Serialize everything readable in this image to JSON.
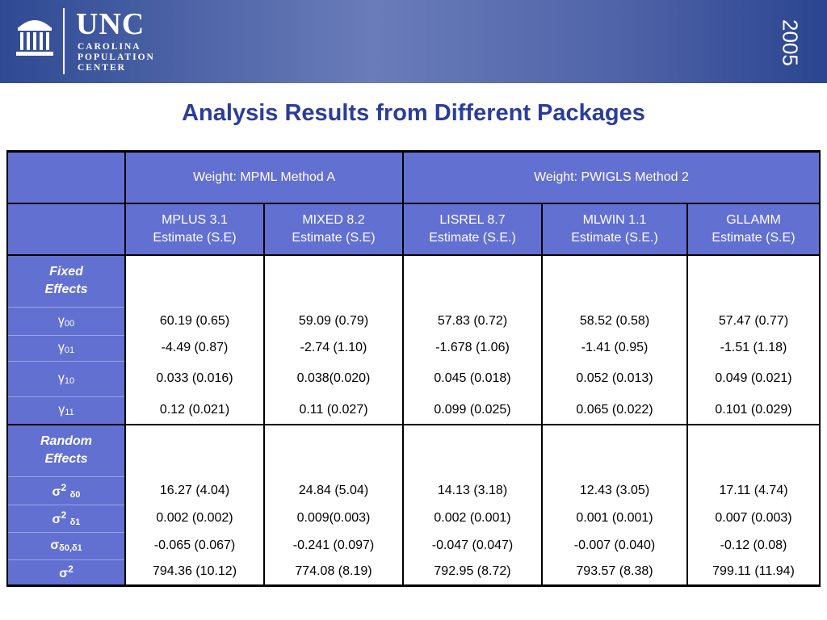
{
  "logo": {
    "icon": "old-well-icon",
    "name": "UNC",
    "line1": "CAROLINA",
    "line2": "POPULATION",
    "line3": "CENTER"
  },
  "year": "2005",
  "title": "Analysis Results from Different Packages",
  "table": {
    "weight_a": "Weight:  MPML Method A",
    "weight_b": "Weight:  PWIGLS Method 2",
    "columns": [
      {
        "name": "MPLUS 3.1",
        "sub": "Estimate (S.E)"
      },
      {
        "name": "MIXED 8.2",
        "sub": "Estimate (S.E)"
      },
      {
        "name": "LISREL 8.7",
        "sub": "Estimate (S.E.)"
      },
      {
        "name": "MLWIN 1.1",
        "sub": "Estimate (S.E.)"
      },
      {
        "name": "GLLAMM",
        "sub": "Estimate (S.E)"
      }
    ],
    "fixed_label_1": "Fixed",
    "fixed_label_2": "Effects",
    "random_label_1": "Random",
    "random_label_2": "Effects",
    "fixed_rows": [
      {
        "sym": "γ",
        "sub": "00",
        "values": [
          "60.19 (0.65)",
          "59.09 (0.79)",
          "57.83 (0.72)",
          "58.52 (0.58)",
          "57.47 (0.77)"
        ]
      },
      {
        "sym": "γ",
        "sub": "01",
        "values": [
          "-4.49 (0.87)",
          "-2.74 (1.10)",
          "-1.678 (1.06)",
          "-1.41 (0.95)",
          "-1.51 (1.18)"
        ]
      },
      {
        "sym": "γ",
        "sub": "10",
        "values": [
          "0.033 (0.016)",
          "0.038(0.020)",
          "0.045 (0.018)",
          "0.052 (0.013)",
          "0.049 (0.021)"
        ]
      },
      {
        "sym": "γ",
        "sub": "11",
        "values": [
          "0.12 (0.021)",
          "0.11 (0.027)",
          "0.099 (0.025)",
          "0.065 (0.022)",
          "0.101 (0.029)"
        ]
      }
    ],
    "random_rows": [
      {
        "sym": "σ",
        "sup": "2",
        "sub": "δ0",
        "values": [
          "16.27 (4.04)",
          "24.84 (5.04)",
          "14.13 (3.18)",
          "12.43 (3.05)",
          "17.11 (4.74)"
        ]
      },
      {
        "sym": "σ",
        "sup": "2",
        "sub": "δ1",
        "values": [
          "0.002 (0.002)",
          "0.009(0.003)",
          "0.002 (0.001)",
          "0.001 (0.001)",
          "0.007 (0.003)"
        ]
      },
      {
        "sym": "σ",
        "sup": "",
        "sub": "δ0,δ1",
        "values": [
          "-0.065 (0.067)",
          "-0.241 (0.097)",
          "-0.047 (0.047)",
          "-0.007 (0.040)",
          "-0.12 (0.08)"
        ]
      },
      {
        "sym": "σ",
        "sup": "2",
        "sub": "",
        "values": [
          "794.36 (10.12)",
          "774.08 (8.19)",
          "792.95 (8.72)",
          "793.57 (8.38)",
          "799.11 (11.94)"
        ]
      }
    ]
  }
}
